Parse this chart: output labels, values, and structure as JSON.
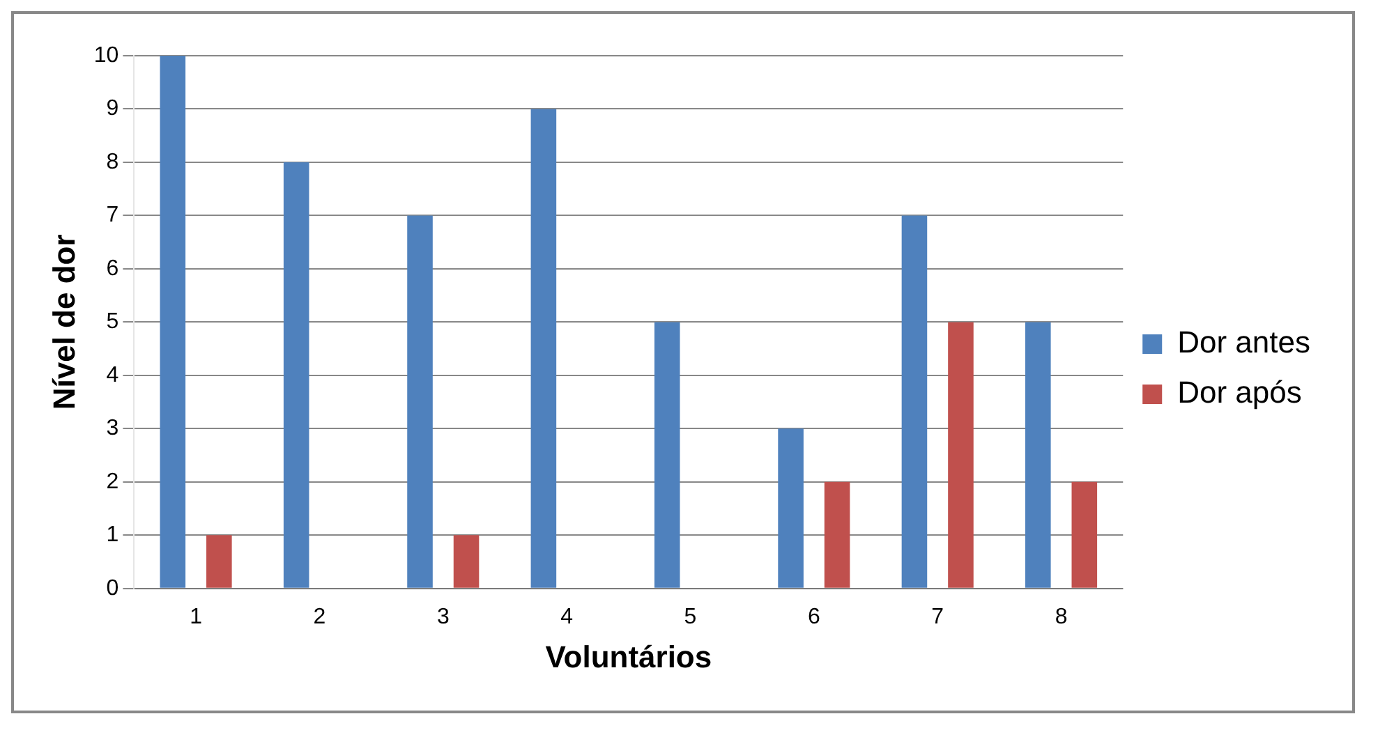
{
  "chart_data": {
    "type": "bar",
    "xlabel": "Voluntários",
    "ylabel": "Nível de dor",
    "categories": [
      "1",
      "2",
      "3",
      "4",
      "5",
      "6",
      "7",
      "8"
    ],
    "series": [
      {
        "name": "Dor antes",
        "color": "#4f81bd",
        "values": [
          10,
          8,
          7,
          9,
          5,
          3,
          7,
          5
        ]
      },
      {
        "name": "Dor após",
        "color": "#c0504d",
        "values": [
          1,
          0,
          1,
          0,
          0,
          2,
          5,
          2
        ]
      }
    ],
    "ylim": [
      0,
      10
    ],
    "yticks": [
      0,
      1,
      2,
      3,
      4,
      5,
      6,
      7,
      8,
      9,
      10
    ],
    "grid": "y",
    "legend": "right"
  }
}
